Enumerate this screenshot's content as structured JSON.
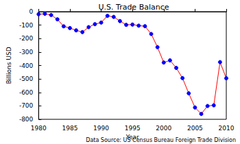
{
  "chart_data": {
    "type": "line",
    "title": "U.S. Trade Balance",
    "xlabel": "Year",
    "ylabel": "Billions USD",
    "annotation": "Data Source: US Census Bureau Foreign Trade Division",
    "x": [
      1980,
      1981,
      1982,
      1983,
      1984,
      1985,
      1986,
      1987,
      1988,
      1989,
      1990,
      1991,
      1992,
      1993,
      1994,
      1995,
      1996,
      1997,
      1998,
      1999,
      2000,
      2001,
      2002,
      2003,
      2004,
      2005,
      2006,
      2007,
      2008,
      2009,
      2010
    ],
    "values": [
      -19,
      -16,
      -25,
      -57,
      -109,
      -122,
      -139,
      -152,
      -115,
      -93,
      -81,
      -31,
      -39,
      -70,
      -98,
      -96,
      -104,
      -108,
      -166,
      -264,
      -378,
      -362,
      -418,
      -494,
      -607,
      -712,
      -760,
      -701,
      -696,
      -375,
      -495
    ],
    "color": "#ff0000",
    "marker": "circle",
    "xlim": [
      1980,
      2010
    ],
    "xticks": [
      1980,
      1985,
      1990,
      1995,
      2000,
      2005,
      2010
    ],
    "ylim": [
      -800,
      0
    ],
    "yticks": [
      -800,
      -700,
      -600,
      -500,
      -400,
      -300,
      -200,
      -100,
      0
    ],
    "grid": false
  }
}
